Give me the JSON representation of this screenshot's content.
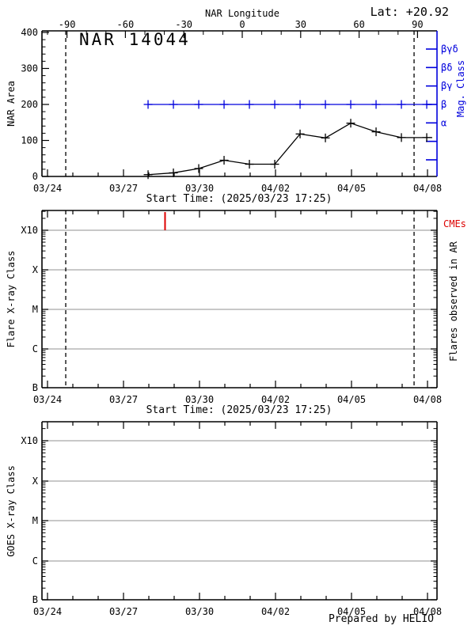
{
  "footer": {
    "prepared_by": "Prepared by HELIO"
  },
  "chart_data": [
    {
      "id": "nar-area-panel",
      "type": "line",
      "title": "NAR 14044",
      "lat": "Lat: +20.92",
      "xlabel": "Start Time: (2025/03/23 17:25)",
      "ylabel": "NAR Area",
      "ylim": [
        0,
        400
      ],
      "y_ticks": [
        0,
        100,
        200,
        300,
        400
      ],
      "y_minor_step": 20,
      "x_tick_labels": [
        "03/24",
        "03/27",
        "03/30",
        "04/02",
        "04/05",
        "04/08"
      ],
      "x_major_step_days": 3,
      "top_axis": {
        "label": "NAR Longitude",
        "ticks": [
          -90,
          -60,
          -30,
          0,
          30,
          60,
          90
        ],
        "minor_step": 10
      },
      "right_axis": {
        "label": "Mag. Class",
        "tick_labels": [
          "βγδ",
          "βδ",
          "βγ",
          "β",
          "α"
        ],
        "tick_count": 7
      },
      "limb_lines_days": [
        0.72,
        14.47
      ],
      "grid": false,
      "legend": "none",
      "series": [
        {
          "name": "NAR Area",
          "color": "#000000",
          "marker": "plus",
          "days_since_0324": [
            3.97,
            4.97,
            5.97,
            6.97,
            7.97,
            8.97,
            9.97,
            10.97,
            11.97,
            12.97,
            13.97,
            14.97
          ],
          "values": [
            5,
            10,
            22,
            45,
            34,
            34,
            118,
            107,
            148,
            124,
            108,
            108
          ]
        },
        {
          "name": "Mag. Class",
          "color": "#0000dd",
          "marker": "plus",
          "class_label": "β",
          "days_since_0324": [
            3.97,
            4.97,
            5.97,
            6.97,
            7.97,
            8.97,
            9.97,
            10.97,
            11.97,
            12.97,
            13.97,
            14.97
          ],
          "values": [
            200,
            200,
            200,
            200,
            200,
            200,
            200,
            200,
            200,
            200,
            200,
            200
          ]
        }
      ]
    },
    {
      "id": "flare-xray-panel",
      "type": "events",
      "xlabel": "Start Time: (2025/03/23 17:25)",
      "ylabel": "Flare X-ray Class",
      "right_label": "Flares observed in AR",
      "cme_label": "CMEs",
      "y_tick_labels": [
        "X10",
        "X",
        "M",
        "C",
        "B"
      ],
      "x_tick_labels": [
        "03/24",
        "03/27",
        "03/30",
        "04/02",
        "04/05",
        "04/08"
      ],
      "x_major_step_days": 3,
      "limb_lines_days": [
        0.72,
        14.47
      ],
      "cme_events_days": [
        4.64
      ],
      "flares": [],
      "grid": true
    },
    {
      "id": "goes-xray-panel",
      "type": "events",
      "ylabel": "GOES X-ray Class",
      "y_tick_labels": [
        "X10",
        "X",
        "M",
        "C",
        "B"
      ],
      "x_tick_labels": [
        "03/24",
        "03/27",
        "03/30",
        "04/02",
        "04/05",
        "04/08"
      ],
      "x_major_step_days": 3,
      "limb_lines_days": [],
      "cme_events_days": [],
      "flares": [],
      "grid": true
    }
  ],
  "colors": {
    "accent_blue": "#0000dd",
    "accent_red": "#dd0000",
    "grid_gray": "#a6a6a6"
  }
}
